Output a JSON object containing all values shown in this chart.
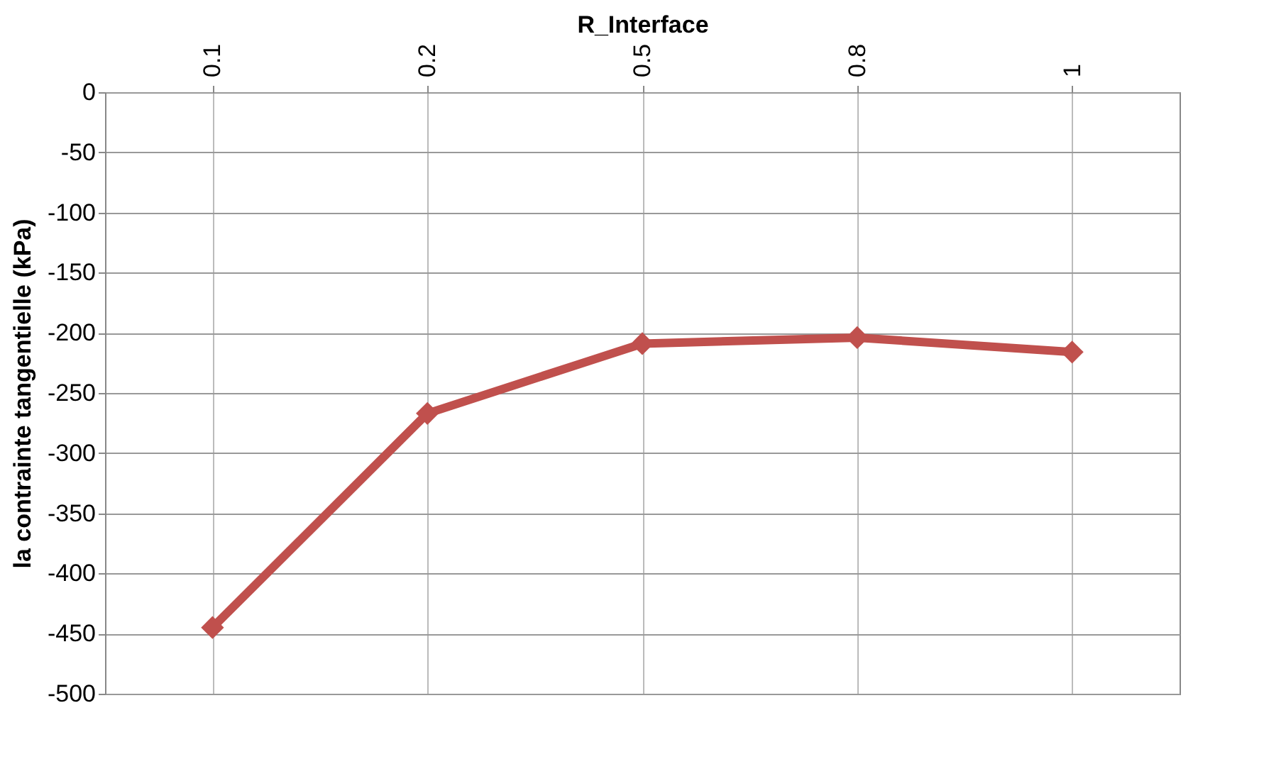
{
  "chart_data": {
    "type": "line",
    "xlabel": "R_Interface",
    "ylabel": "la contrainte tangentielle  (kPa)",
    "categories": [
      "0.1",
      "0.2",
      "0.5",
      "0.8",
      "1"
    ],
    "series": [
      {
        "color": "#c0504d",
        "values": [
          -445,
          -267,
          -209,
          -204,
          -216
        ]
      }
    ],
    "ylim": [
      -500,
      0
    ],
    "yticks": [
      0,
      -50,
      -100,
      -150,
      -200,
      -250,
      -300,
      -350,
      -400,
      -450,
      -500
    ],
    "grid": true,
    "marker": "diamond",
    "line_style": "solid"
  }
}
